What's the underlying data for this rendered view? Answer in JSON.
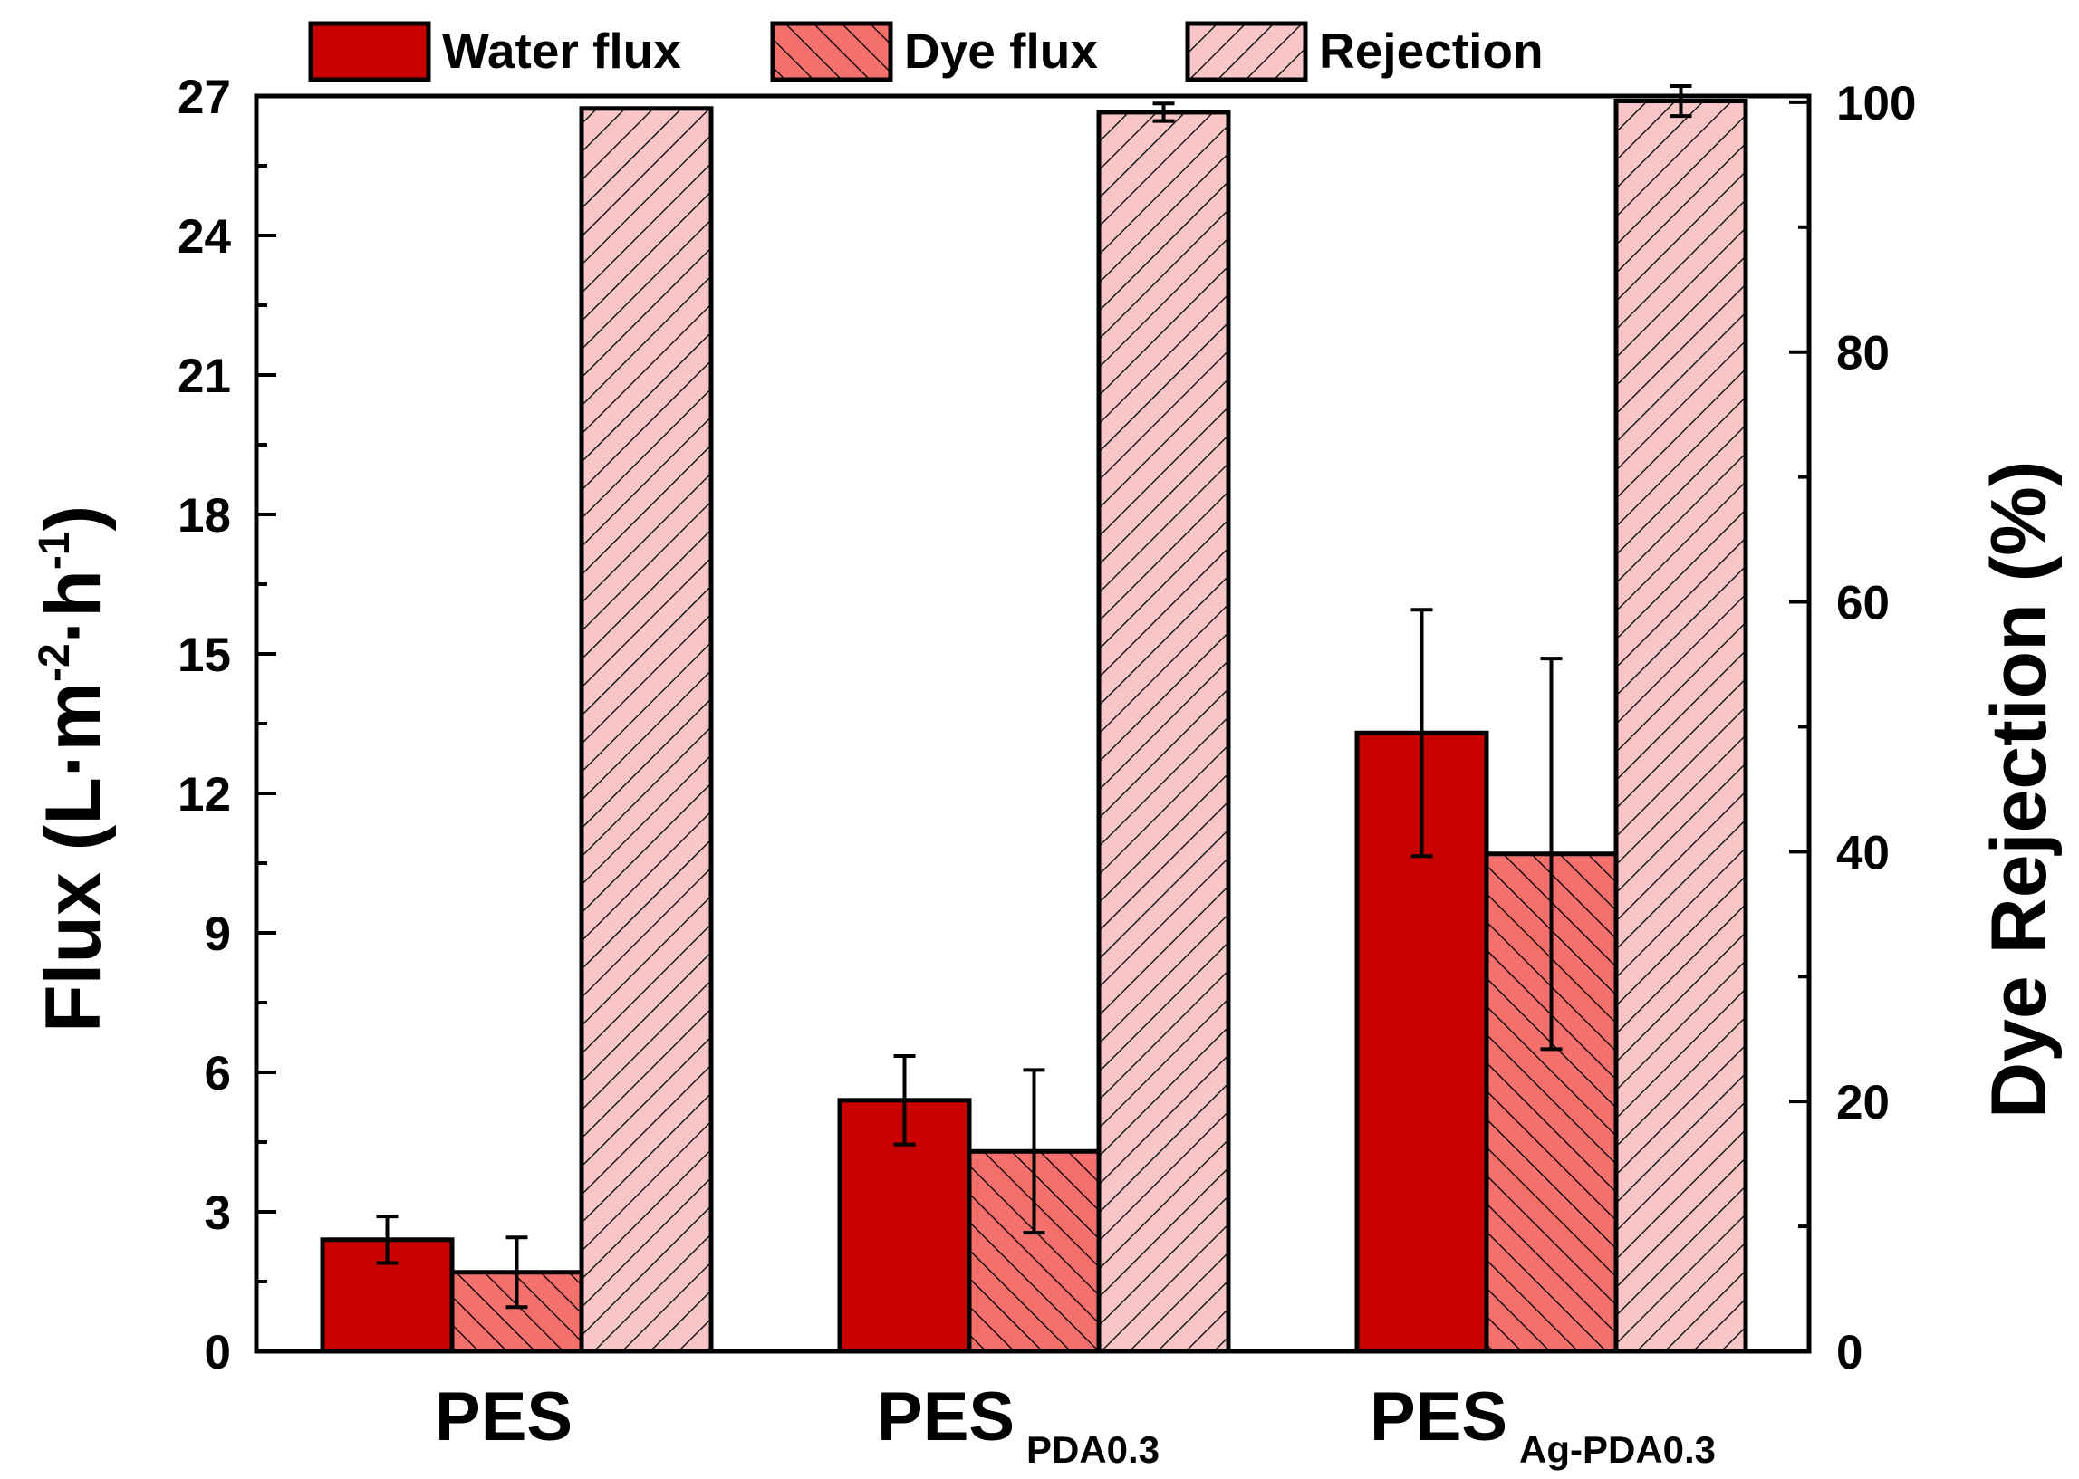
{
  "chart_data": {
    "type": "bar",
    "categories": [
      {
        "main": "PES",
        "sub": ""
      },
      {
        "main": "PES",
        "sub": "PDA0.3"
      },
      {
        "main": "PES",
        "sub": "Ag-PDA0.3"
      }
    ],
    "series": [
      {
        "name": "Water flux",
        "axis": "left",
        "pattern": "solid",
        "color": "#c80000",
        "values": [
          2.4,
          5.4,
          13.3
        ],
        "errors": [
          0.5,
          0.95,
          2.65
        ]
      },
      {
        "name": "Dye flux",
        "axis": "left",
        "pattern": "hatch-back",
        "color": "#f4706c",
        "values": [
          1.7,
          4.3,
          10.7
        ],
        "errors": [
          0.75,
          1.75,
          4.2
        ]
      },
      {
        "name": "Rejection",
        "axis": "right",
        "pattern": "hatch-forward",
        "color": "#f8c6c6",
        "values": [
          99.5,
          99.2,
          100.1
        ],
        "errors": [
          0,
          0.7,
          1.2
        ]
      }
    ],
    "y_left": {
      "label_main": "Flux (L·m",
      "label_sup1": "-2",
      "label_mid": "·h",
      "label_sup2": "-1",
      "label_end": ")",
      "range": [
        0,
        27
      ],
      "ticks": [
        "0",
        "3",
        "6",
        "9",
        "12",
        "15",
        "18",
        "21",
        "24",
        "27"
      ]
    },
    "y_right": {
      "label": "Dye Rejection (%)",
      "range": [
        0,
        100.5
      ],
      "ticks": [
        "0",
        "20",
        "40",
        "60",
        "80",
        "100"
      ]
    },
    "legend_position": "top"
  }
}
